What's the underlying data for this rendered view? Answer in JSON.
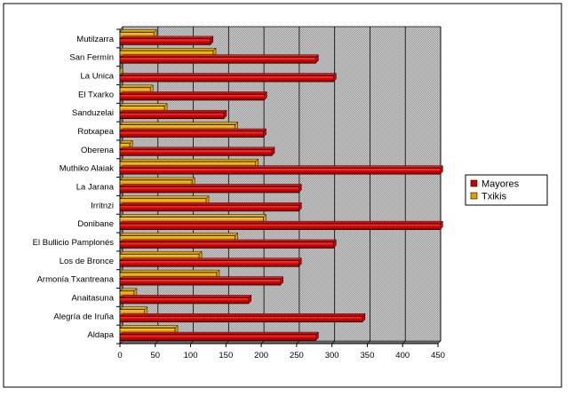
{
  "chart_data": {
    "type": "bar",
    "orientation": "horizontal",
    "categories": [
      "Mutilzarra",
      "San Fermín",
      "La Unica",
      "El Txarko",
      "Sanduzelai",
      "Rotxapea",
      "Oberena",
      "Muthiko Alaiak",
      "La Jarana",
      "Irritnzi",
      "Donibane",
      "El Bullicio Pamplonés",
      "Los de Bronce",
      "Armonía Txantreana",
      "Anaitasuna",
      "Alegría de Iruña",
      "Aldapa"
    ],
    "series": [
      {
        "name": "Mayores",
        "color": "#cc0000",
        "values": [
          128,
          277,
          302,
          204,
          147,
          203,
          215,
          453,
          253,
          253,
          453,
          302,
          253,
          227,
          182,
          343,
          277
        ]
      },
      {
        "name": "Txikis",
        "color": "#e0a000",
        "values": [
          48,
          132,
          0,
          43,
          63,
          163,
          14,
          192,
          102,
          122,
          203,
          163,
          112,
          137,
          20,
          35,
          78
        ]
      }
    ],
    "xlim": [
      0,
      450
    ],
    "xticks": [
      0,
      50,
      100,
      150,
      200,
      250,
      300,
      350,
      400,
      450
    ],
    "grid": true,
    "legend_position": "right"
  }
}
